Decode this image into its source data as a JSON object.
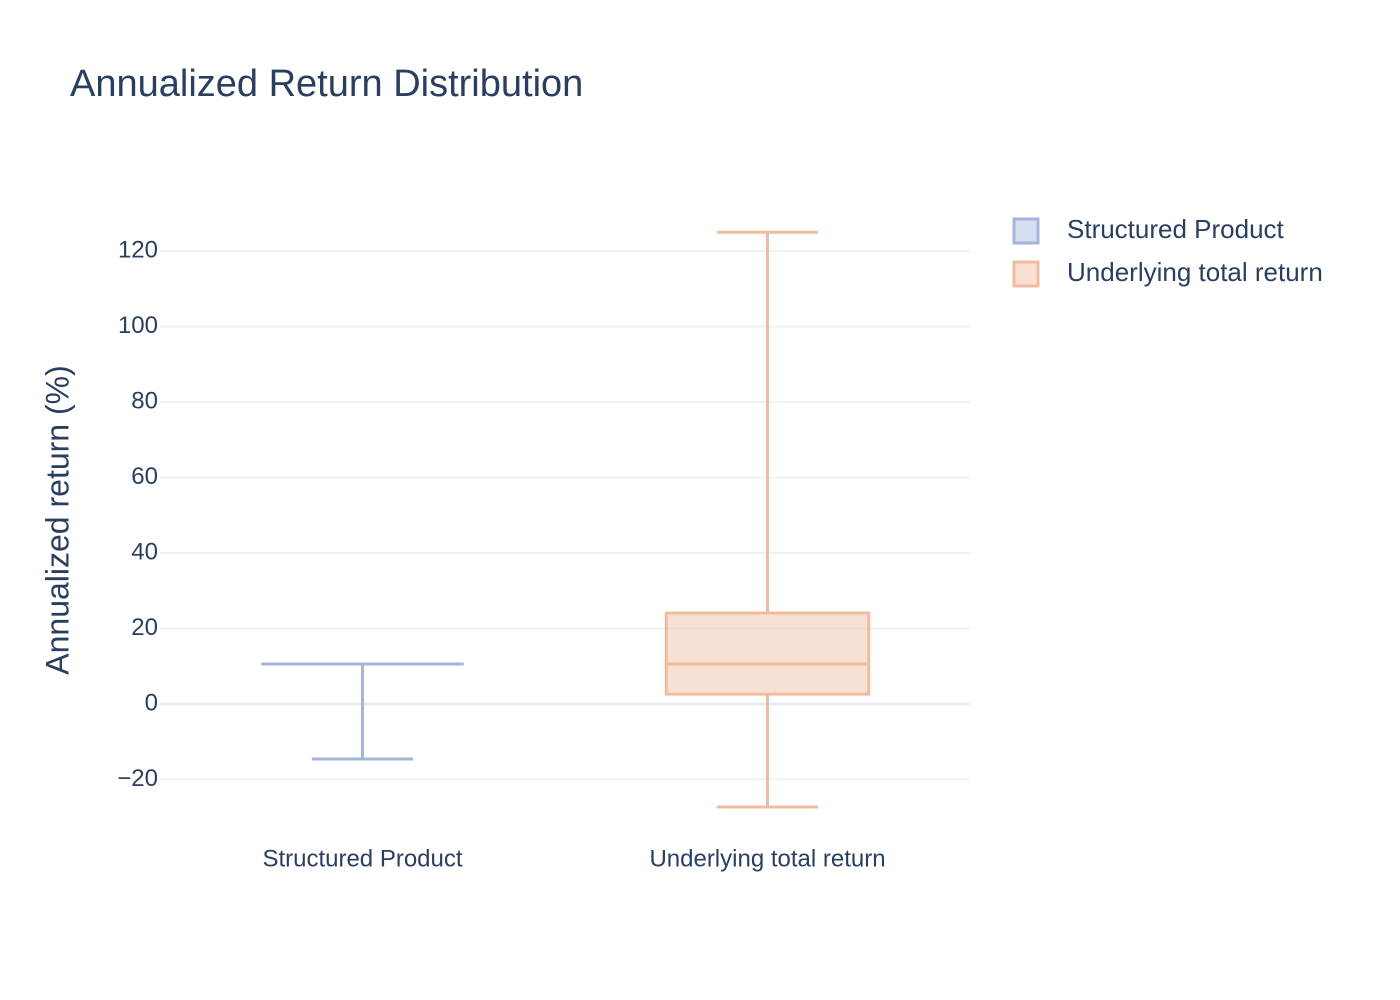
{
  "chart_data": {
    "type": "box",
    "title": "Annualized Return Distribution",
    "y_label": "Annualized return (%)",
    "categories": [
      "Structured Product",
      "Underlying total return"
    ],
    "series": [
      {
        "name": "Structured Product",
        "color": "#a4b5dc",
        "lowerfence": -14.6,
        "q1": 10.6,
        "median": 10.6,
        "q3": 10.6,
        "upperfence": 10.6
      },
      {
        "name": "Underlying total return",
        "color": "#efbc9f",
        "lowerfence": -27.3,
        "q1": 2.6,
        "median": 10.6,
        "q3": 24.1,
        "upperfence": 125.0
      }
    ],
    "ylim": [
      -33.4,
      130.9
    ],
    "yticks": [
      {
        "value": -20,
        "label": "−20"
      },
      0,
      20,
      40,
      60,
      80,
      100,
      120
    ],
    "grid": true
  }
}
